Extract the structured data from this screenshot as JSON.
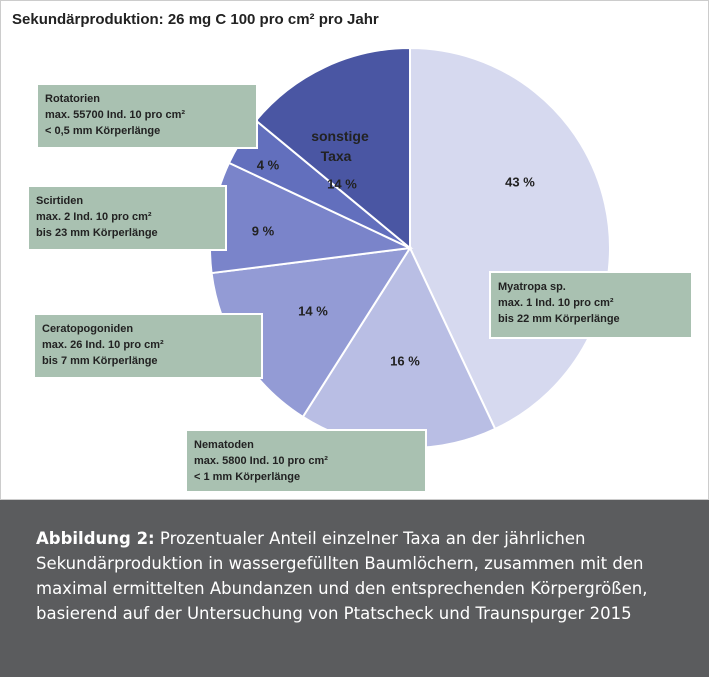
{
  "chart_data": {
    "type": "pie",
    "title": "Sekundärproduktion: 26 mg C 100 pro cm² pro Jahr",
    "categories": [
      "Myatropa sp.",
      "Nematoden",
      "Ceratopogoniden",
      "Scirtiden",
      "Rotatorien",
      "sonstige Taxa"
    ],
    "values": [
      43,
      16,
      14,
      9,
      4,
      14
    ],
    "value_labels": [
      "43 %",
      "16 %",
      "14 %",
      "9 %",
      "4 %",
      "14 %"
    ],
    "colors": [
      "#d6d9ef",
      "#b9bee4",
      "#939bd5",
      "#7a84ca",
      "#626fbd",
      "#4a56a3"
    ],
    "details": [
      [
        "max. 1 Ind. 10 pro cm²",
        "bis 22 mm Körperlänge"
      ],
      [
        "max. 5800 Ind. 10 pro cm²",
        "< 1 mm  Körperlänge"
      ],
      [
        "max. 26 Ind. 10 pro cm²",
        "bis 7 mm Körperlänge"
      ],
      [
        "max. 2 Ind. 10 pro cm²",
        "bis 23 mm Körperlänge"
      ],
      [
        "max. 55700 Ind. 10 pro cm²",
        "< 0,5 mm Körperlänge"
      ],
      null
    ]
  },
  "caption": {
    "label": "Abbildung 2:",
    "text": "Prozentualer Anteil einzelner Taxa an der jährlichen Sekundärproduktion in wassergefüllten Baumlöchern, zusammen mit den maximal ermittelten Abundanzen und den entsprechenden Körpergrößen, basierend auf der Untersuchung von Ptatscheck und Traunspurger 2015"
  }
}
